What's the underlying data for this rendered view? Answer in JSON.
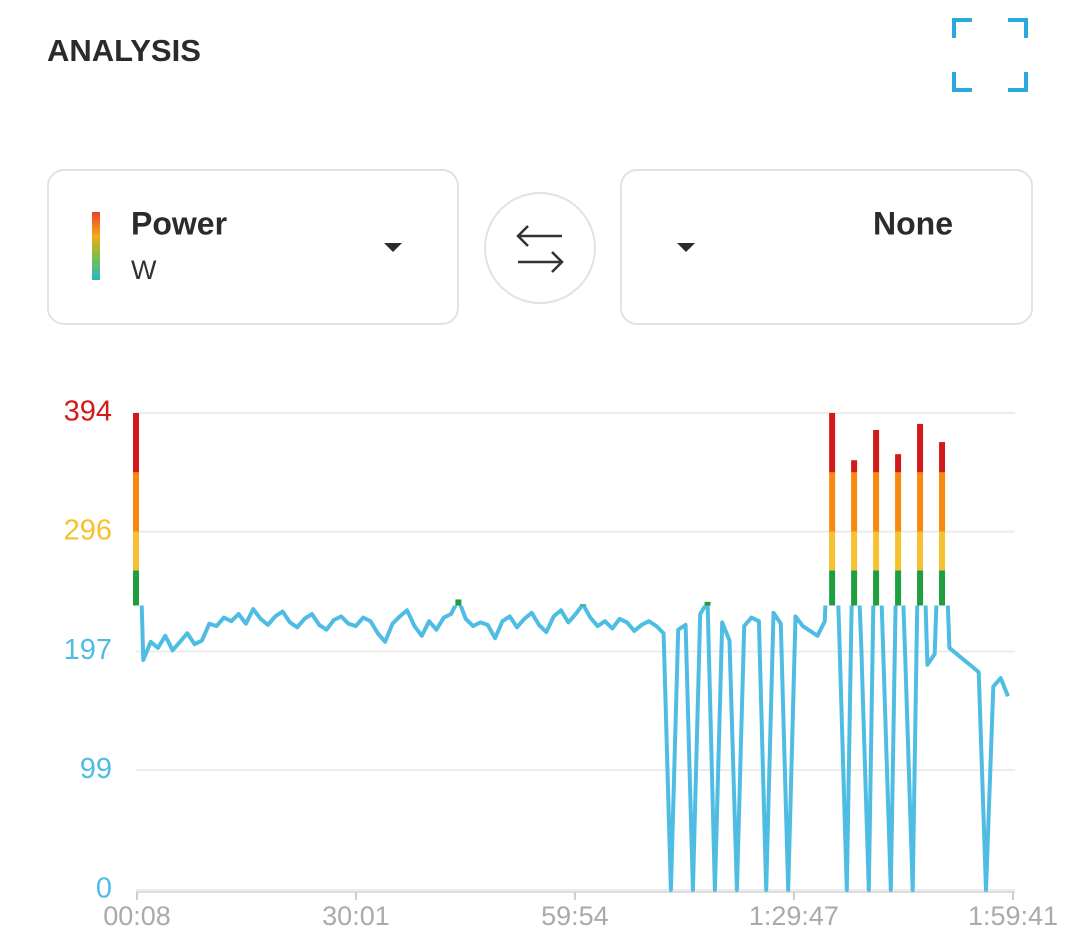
{
  "header": {
    "title": "ANALYSIS"
  },
  "selectors": {
    "primary": {
      "label": "Power",
      "unit": "W"
    },
    "secondary": {
      "label": "None"
    }
  },
  "chart_data": {
    "type": "line",
    "x": [
      0,
      60,
      120,
      180,
      240,
      300,
      360,
      420,
      480,
      540,
      600,
      660,
      720,
      780,
      840,
      900,
      960,
      1020,
      1080,
      1140,
      1200,
      1260,
      1320,
      1380,
      1440,
      1500,
      1560,
      1620,
      1680,
      1740,
      1800,
      1860,
      1920,
      1980,
      2040,
      2100,
      2160,
      2220,
      2280,
      2340,
      2400,
      2460,
      2520,
      2580,
      2640,
      2700,
      2760,
      2820,
      2880,
      2940,
      3000,
      3060,
      3120,
      3180,
      3240,
      3300,
      3360,
      3420,
      3480,
      3540,
      3600,
      3660,
      3720,
      3780,
      3840,
      3900,
      3960,
      4020,
      4080,
      4140,
      4200,
      4260,
      4320,
      4380,
      4440,
      4500,
      4560,
      4620,
      4680,
      4740,
      4800,
      4860,
      4920,
      4980,
      5040,
      5100,
      5160,
      5220,
      5280,
      5340,
      5400,
      5460,
      5520,
      5580,
      5640,
      5700,
      5760,
      5820,
      5880,
      5940,
      6000,
      6060,
      6120,
      6180,
      6240,
      6300,
      6360,
      6420,
      6480,
      6540,
      6600,
      6660,
      6720,
      6780,
      6840,
      6900,
      6960,
      7020,
      7080,
      7140
    ],
    "series": [
      {
        "color": "#4fbde3",
        "values": [
          394,
          190,
          205,
          200,
          210,
          198,
          205,
          212,
          203,
          206,
          220,
          218,
          225,
          222,
          228,
          220,
          232,
          224,
          219,
          226,
          230,
          221,
          217,
          224,
          228,
          219,
          215,
          223,
          226,
          220,
          218,
          225,
          222,
          212,
          205,
          220,
          226,
          231,
          218,
          210,
          222,
          215,
          225,
          228,
          240,
          224,
          218,
          221,
          219,
          208,
          222,
          226,
          217,
          224,
          229,
          219,
          213,
          226,
          231,
          221,
          228,
          236,
          225,
          218,
          222,
          216,
          224,
          221,
          214,
          219,
          222,
          218,
          212,
          0,
          215,
          219,
          0,
          228,
          238,
          0,
          221,
          206,
          0,
          218,
          225,
          222,
          0,
          229,
          220,
          0,
          226,
          218,
          214,
          210,
          222,
          394,
          205,
          0,
          355,
          198,
          0,
          380,
          192,
          0,
          360,
          188,
          0,
          385,
          186,
          195,
          370,
          200,
          195,
          190,
          185,
          180,
          0,
          168,
          175,
          160
        ]
      }
    ],
    "xlim": [
      0,
      7181
    ],
    "ylim": [
      0,
      394
    ],
    "xticks": [
      {
        "value": 8,
        "label": "00:08"
      },
      {
        "value": 1801,
        "label": "30:01"
      },
      {
        "value": 3594,
        "label": "59:54"
      },
      {
        "value": 5387,
        "label": "1:29:47"
      },
      {
        "value": 7181,
        "label": "1:59:41"
      }
    ],
    "yticks": [
      0,
      99,
      197,
      296,
      394
    ],
    "grid": true,
    "zones": [
      {
        "max": 235,
        "color": "#4fbde3"
      },
      {
        "max": 264,
        "color": "#1e9e3e"
      },
      {
        "max": 296,
        "color": "#f5c12e"
      },
      {
        "max": 345,
        "color": "#f7890f"
      },
      {
        "max": 394,
        "color": "#d31a1a"
      }
    ]
  }
}
